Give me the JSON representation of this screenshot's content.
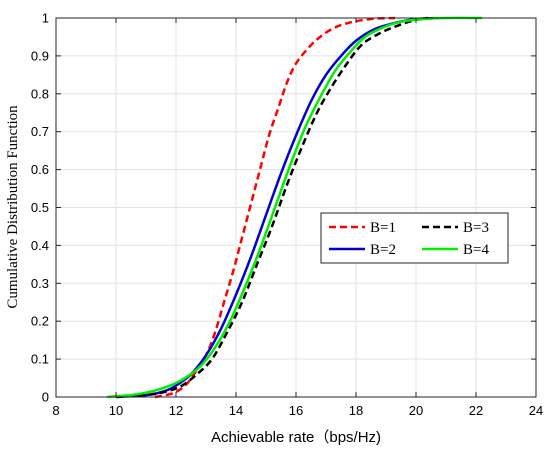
{
  "chart_data": {
    "type": "line",
    "xlabel": "Achievable rate（bps/Hz)",
    "ylabel": "Cumulative Distribution Function",
    "xlim": [
      8,
      24
    ],
    "ylim": [
      0,
      1
    ],
    "xticks": [
      8,
      10,
      12,
      14,
      16,
      18,
      20,
      22,
      24
    ],
    "yticks": [
      0,
      0.1,
      0.2,
      0.3,
      0.4,
      0.5,
      0.6,
      0.7,
      0.8,
      0.9,
      1
    ],
    "grid": true,
    "legend": {
      "placement": "center-right",
      "columns": 2
    },
    "series": [
      {
        "name": "B=1",
        "color": "#ff0000",
        "dash": "dashed",
        "x": [
          11.3,
          11.9,
          12.3,
          12.6,
          13.0,
          13.3,
          13.6,
          13.9,
          14.2,
          14.5,
          14.8,
          15.1,
          15.4,
          15.7,
          16.0,
          16.4,
          16.8,
          17.3,
          17.9,
          18.6,
          19.3
        ],
        "y": [
          0.0,
          0.01,
          0.03,
          0.06,
          0.11,
          0.17,
          0.25,
          0.33,
          0.42,
          0.51,
          0.6,
          0.69,
          0.76,
          0.83,
          0.88,
          0.92,
          0.95,
          0.975,
          0.99,
          0.998,
          1.0
        ]
      },
      {
        "name": "B=2",
        "color": "#0000d0",
        "dash": "solid",
        "x": [
          10.0,
          11.0,
          11.6,
          12.0,
          12.5,
          13.0,
          13.5,
          14.0,
          14.5,
          15.0,
          15.5,
          16.0,
          16.5,
          17.0,
          17.5,
          18.0,
          18.6,
          19.2,
          19.8,
          20.4
        ],
        "y": [
          0.0,
          0.005,
          0.015,
          0.03,
          0.06,
          0.11,
          0.18,
          0.27,
          0.37,
          0.48,
          0.59,
          0.69,
          0.78,
          0.85,
          0.9,
          0.94,
          0.97,
          0.985,
          0.995,
          1.0
        ]
      },
      {
        "name": "B=3",
        "color": "#000000",
        "dash": "dashed",
        "x": [
          10.0,
          11.0,
          11.7,
          12.2,
          12.7,
          13.2,
          13.7,
          14.2,
          14.7,
          15.2,
          15.7,
          16.2,
          16.7,
          17.2,
          17.7,
          18.2,
          18.8,
          19.4,
          20.0,
          20.6
        ],
        "y": [
          0.0,
          0.005,
          0.015,
          0.03,
          0.06,
          0.1,
          0.17,
          0.25,
          0.35,
          0.45,
          0.56,
          0.66,
          0.75,
          0.82,
          0.88,
          0.93,
          0.96,
          0.98,
          0.995,
          1.0
        ]
      },
      {
        "name": "B=4",
        "color": "#00ee00",
        "dash": "solid",
        "x": [
          9.7,
          10.5,
          11.2,
          11.8,
          12.3,
          12.8,
          13.3,
          13.8,
          14.3,
          14.8,
          15.3,
          15.8,
          16.3,
          16.8,
          17.3,
          17.8,
          18.3,
          18.9,
          19.5,
          20.2,
          21.0,
          22.2
        ],
        "y": [
          0.0,
          0.005,
          0.015,
          0.03,
          0.05,
          0.08,
          0.13,
          0.2,
          0.29,
          0.39,
          0.5,
          0.61,
          0.71,
          0.79,
          0.86,
          0.91,
          0.95,
          0.975,
          0.99,
          0.997,
          1.0,
          1.0
        ]
      }
    ]
  }
}
